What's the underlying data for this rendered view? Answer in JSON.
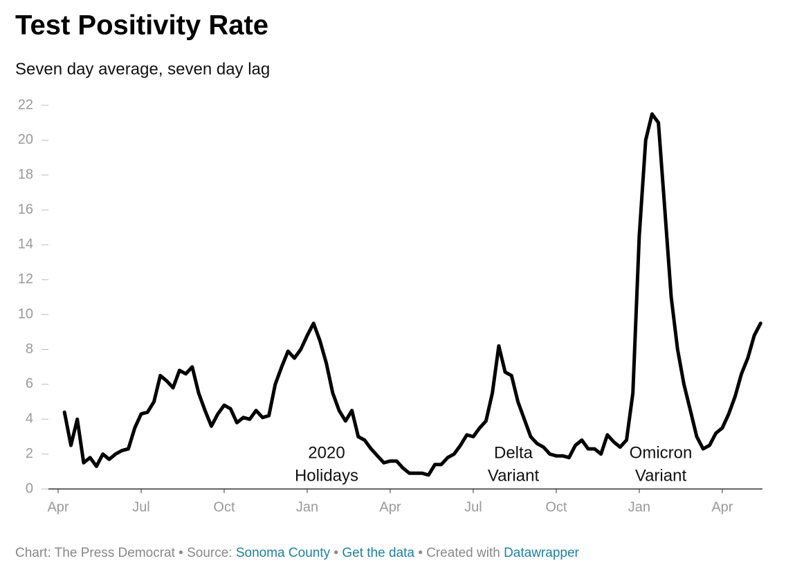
{
  "chart_data": {
    "type": "line",
    "title": "Test Positivity Rate",
    "subtitle": "Seven day average, seven day lag",
    "categories": [
      "Apr",
      null,
      null,
      null,
      null,
      null,
      null,
      null,
      null,
      null,
      null,
      null,
      null,
      "Jul",
      null,
      null,
      null,
      null,
      null,
      null,
      null,
      null,
      null,
      null,
      null,
      null,
      "Oct",
      null,
      null,
      null,
      null,
      null,
      null,
      null,
      null,
      null,
      null,
      null,
      null,
      "Jan",
      null,
      null,
      null,
      null,
      null,
      null,
      null,
      null,
      null,
      null,
      null,
      null,
      "Apr",
      null,
      null,
      null,
      null,
      null,
      null,
      null,
      null,
      null,
      null,
      null,
      null,
      "Jul",
      null,
      null,
      null,
      null,
      null,
      null,
      null,
      null,
      null,
      null,
      null,
      null,
      "Oct",
      null,
      null,
      null,
      null,
      null,
      null,
      null,
      null,
      null,
      null,
      null,
      null,
      "Jan",
      null,
      null,
      null,
      null,
      null,
      null,
      null,
      null,
      null,
      null,
      null,
      null,
      "Apr",
      null,
      null,
      null,
      null,
      null,
      null
    ],
    "series": [
      {
        "color": "#000000",
        "values": [
          null,
          4.4,
          2.5,
          4.0,
          1.5,
          1.8,
          1.3,
          2.0,
          1.7,
          2.0,
          2.2,
          2.3,
          3.5,
          4.3,
          4.4,
          5.0,
          6.5,
          6.2,
          5.8,
          6.8,
          6.6,
          7.0,
          5.5,
          4.5,
          3.6,
          4.3,
          4.8,
          4.6,
          3.8,
          4.1,
          4.0,
          4.5,
          4.1,
          4.2,
          6.0,
          7.0,
          7.9,
          7.5,
          8.0,
          8.8,
          9.5,
          8.5,
          7.2,
          5.5,
          4.5,
          3.9,
          4.5,
          3.0,
          2.8,
          2.3,
          1.9,
          1.5,
          1.6,
          1.6,
          1.2,
          0.9,
          0.9,
          0.9,
          0.8,
          1.4,
          1.4,
          1.8,
          2.0,
          2.5,
          3.1,
          3.0,
          3.5,
          3.9,
          5.5,
          8.2,
          6.7,
          6.5,
          5.0,
          4.0,
          3.0,
          2.6,
          2.4,
          2.0,
          1.9,
          1.9,
          1.8,
          2.5,
          2.8,
          2.3,
          2.3,
          2.0,
          3.1,
          2.7,
          2.4,
          2.8,
          5.5,
          14.5,
          20.0,
          21.5,
          21.0,
          16.0,
          11.0,
          8.0,
          6.0,
          4.5,
          3.0,
          2.3,
          2.5,
          3.2,
          3.5,
          4.3,
          5.3,
          6.6,
          7.5,
          8.8,
          9.5
        ]
      }
    ],
    "ylim": [
      0,
      22
    ],
    "yticks": [
      0,
      2,
      4,
      6,
      8,
      10,
      12,
      14,
      16,
      18,
      20,
      22
    ],
    "annotations": [
      [
        "2020",
        "Holidays"
      ],
      [
        "Delta",
        "Variant"
      ],
      [
        "Omicron",
        "Variant"
      ]
    ],
    "footer": [
      "Chart: The Press Democrat • Source: ",
      "Sonoma County",
      " • ",
      "Get the data",
      " • Created with ",
      "Datawrapper"
    ]
  }
}
